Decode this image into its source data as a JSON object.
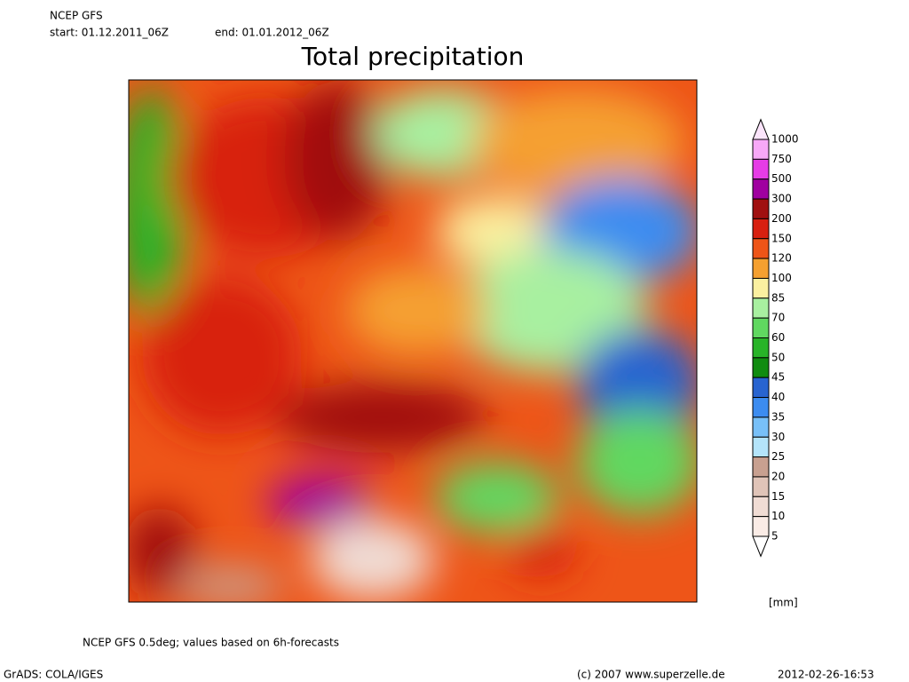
{
  "header": {
    "model": "NCEP GFS",
    "start": "start: 01.12.2011_06Z",
    "end": "end: 01.01.2012_06Z",
    "title": "Total precipitation"
  },
  "legend": {
    "levels": [
      1000,
      750,
      500,
      300,
      200,
      150,
      120,
      100,
      85,
      70,
      60,
      50,
      45,
      40,
      35,
      30,
      25,
      20,
      15,
      10,
      5
    ],
    "colors": [
      "#fbe4fb",
      "#f7a8f7",
      "#e63ce6",
      "#a000a0",
      "#a01010",
      "#d82010",
      "#ee5518",
      "#f5a030",
      "#fbf0a0",
      "#a8f0a0",
      "#60d860",
      "#28b428",
      "#108c10",
      "#2864d0",
      "#3c8cf0",
      "#78c0f8",
      "#b4e4fa",
      "#c8a090",
      "#e0c4b8",
      "#f0dcd4",
      "#faece6",
      "#ffffff"
    ],
    "unit": "[mm]"
  },
  "footer": {
    "note": "NCEP GFS 0.5deg; values based on 6h-forecasts",
    "software": "GrADS: COLA/IGES",
    "copyright": "(c) 2007 www.superzelle.de",
    "timestamp": "2012-02-26-16:53"
  }
}
